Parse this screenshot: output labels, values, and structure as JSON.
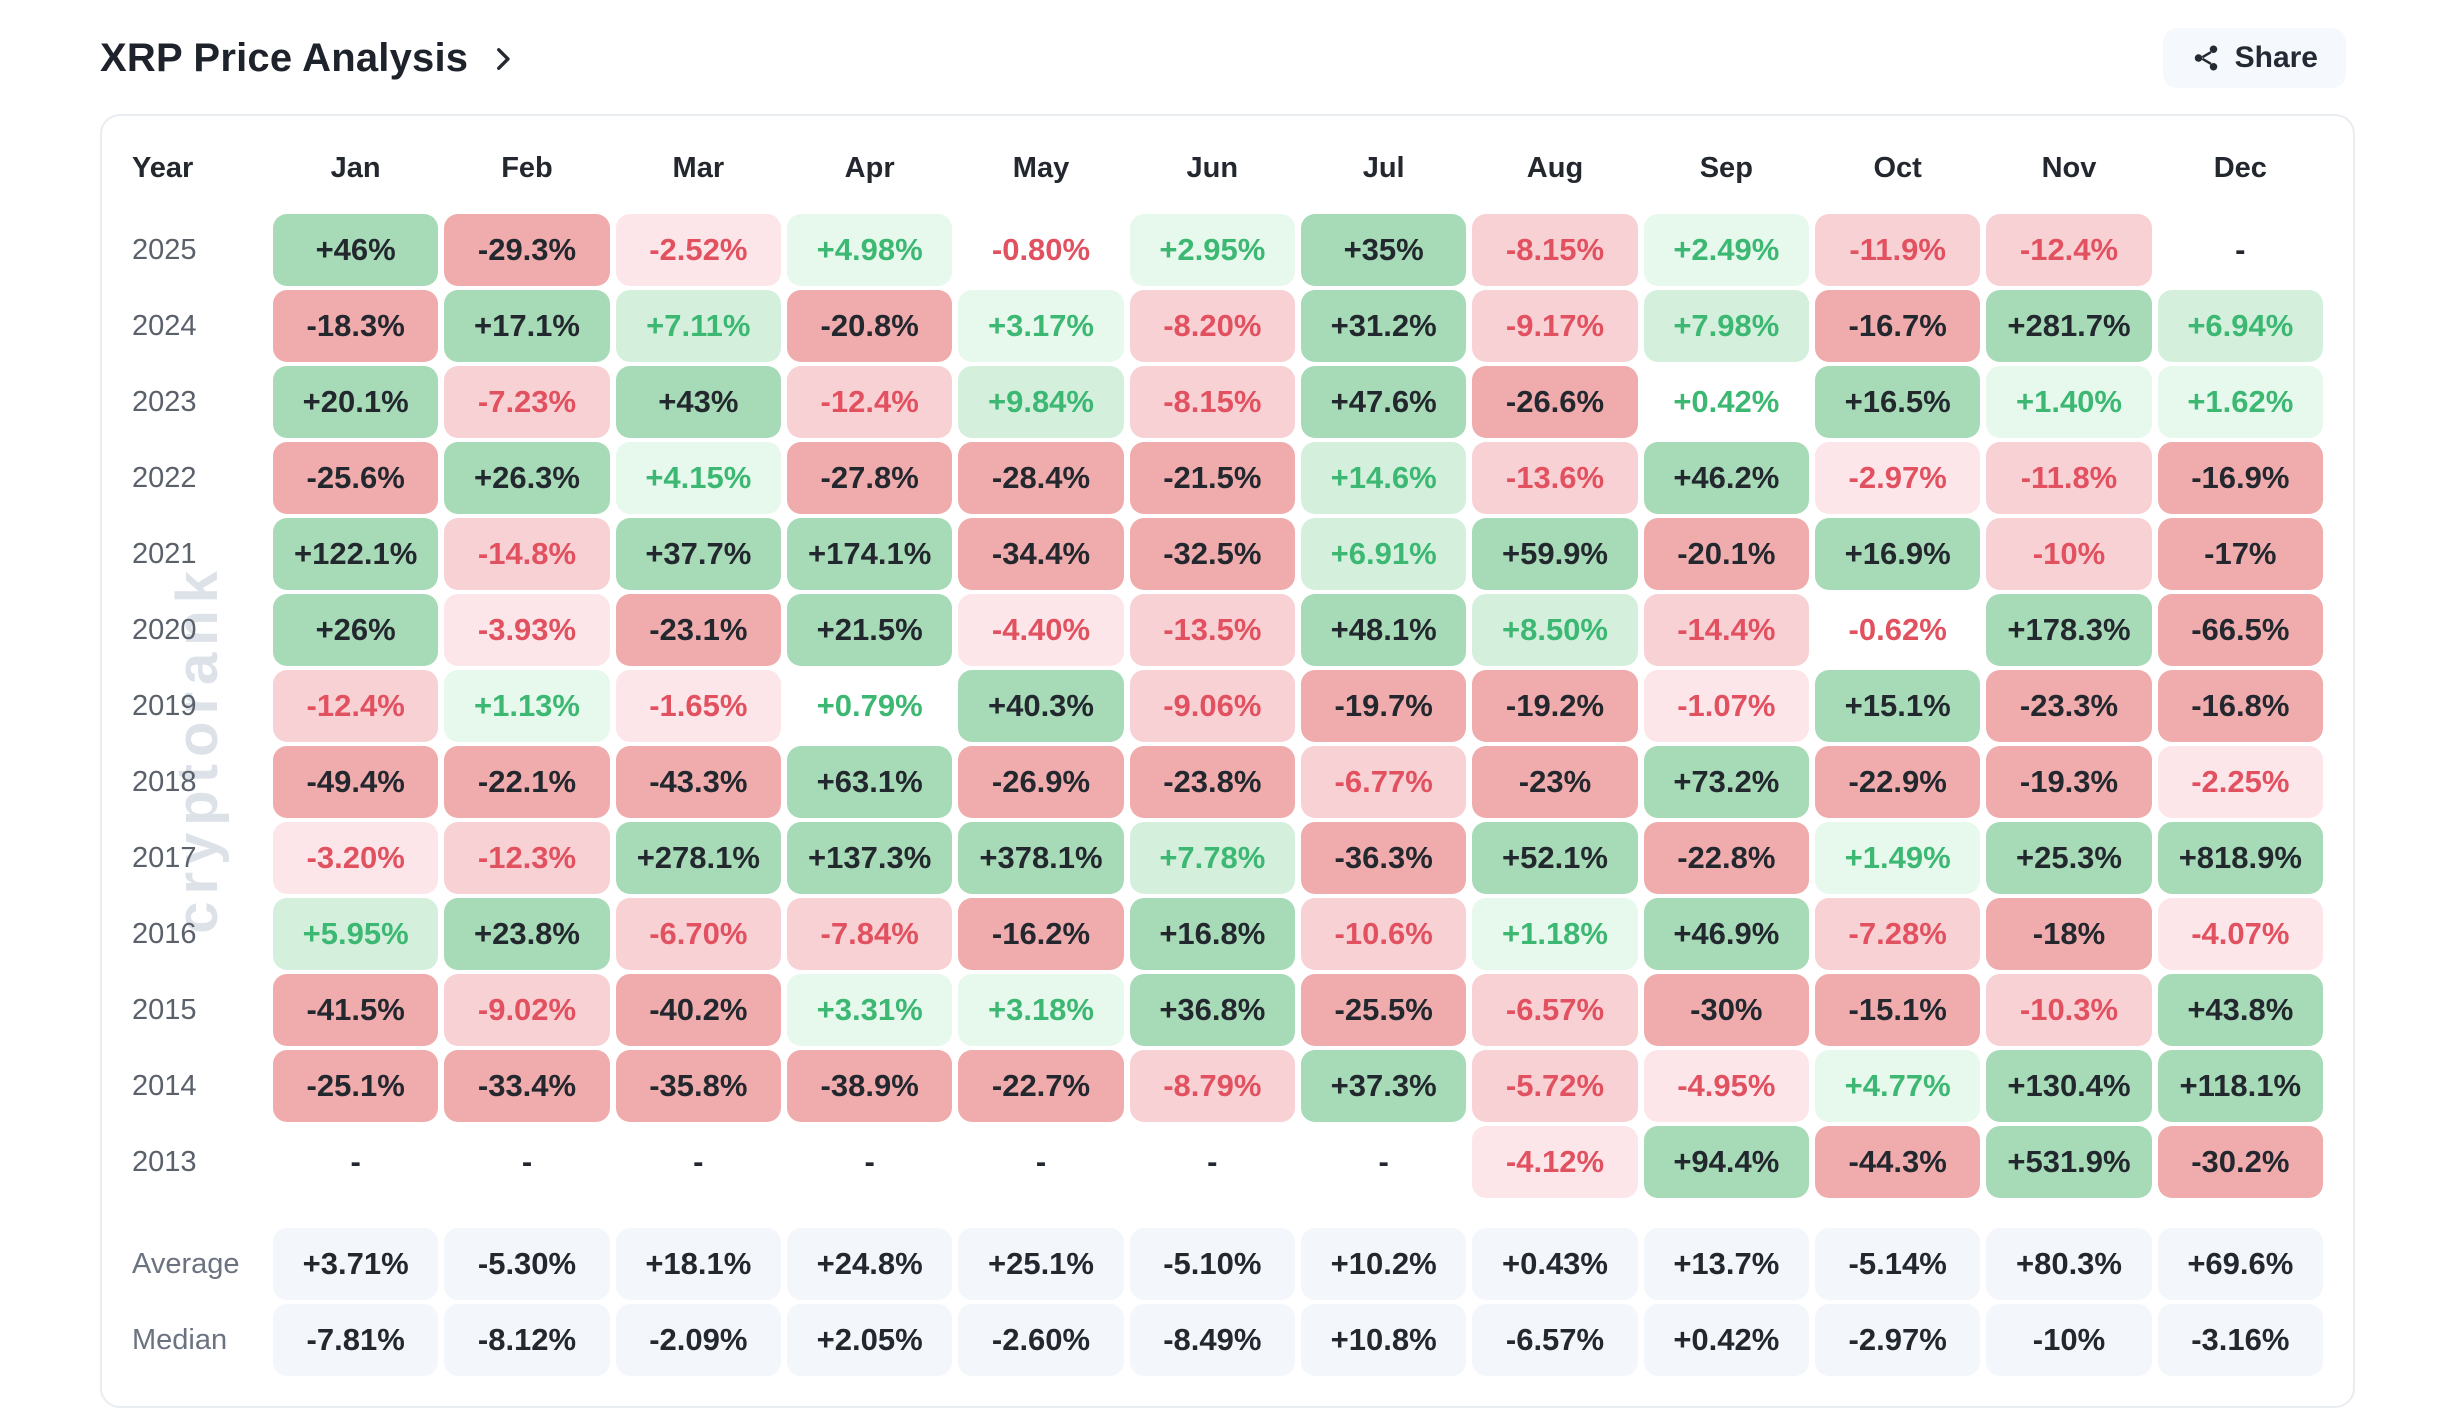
{
  "page": {
    "title": "XRP Price Analysis",
    "share_label": "Share"
  },
  "watermark": "cryptorank",
  "colors": {
    "strong_pos": "#a7dab6",
    "mid_pos": "#d4f0dd",
    "low_pos": "#e7f8ed",
    "strong_neg": "#f0abad",
    "mid_neg": "#f8d1d5",
    "low_neg": "#fce6e9",
    "text_pos": "#3cb873",
    "text_neg": "#e25160",
    "text_dark": "#23282f",
    "summary_bg": "#f3f6fb",
    "card_border": "#e9ecf0",
    "button_bg": "#f5f8fd",
    "year_label": "#5a616b",
    "watermark": "#dde2e9"
  },
  "table": {
    "columns": [
      "Year",
      "Jan",
      "Feb",
      "Mar",
      "Apr",
      "May",
      "Jun",
      "Jul",
      "Aug",
      "Sep",
      "Oct",
      "Nov",
      "Dec"
    ],
    "rows": [
      {
        "year": "2025",
        "cells": [
          "+46%",
          "-29.3%",
          "-2.52%",
          "+4.98%",
          "-0.80%",
          "+2.95%",
          "+35%",
          "-8.15%",
          "+2.49%",
          "-11.9%",
          "-12.4%",
          "-"
        ]
      },
      {
        "year": "2024",
        "cells": [
          "-18.3%",
          "+17.1%",
          "+7.11%",
          "-20.8%",
          "+3.17%",
          "-8.20%",
          "+31.2%",
          "-9.17%",
          "+7.98%",
          "-16.7%",
          "+281.7%",
          "+6.94%"
        ]
      },
      {
        "year": "2023",
        "cells": [
          "+20.1%",
          "-7.23%",
          "+43%",
          "-12.4%",
          "+9.84%",
          "-8.15%",
          "+47.6%",
          "-26.6%",
          "+0.42%",
          "+16.5%",
          "+1.40%",
          "+1.62%"
        ]
      },
      {
        "year": "2022",
        "cells": [
          "-25.6%",
          "+26.3%",
          "+4.15%",
          "-27.8%",
          "-28.4%",
          "-21.5%",
          "+14.6%",
          "-13.6%",
          "+46.2%",
          "-2.97%",
          "-11.8%",
          "-16.9%"
        ]
      },
      {
        "year": "2021",
        "cells": [
          "+122.1%",
          "-14.8%",
          "+37.7%",
          "+174.1%",
          "-34.4%",
          "-32.5%",
          "+6.91%",
          "+59.9%",
          "-20.1%",
          "+16.9%",
          "-10%",
          "-17%"
        ]
      },
      {
        "year": "2020",
        "cells": [
          "+26%",
          "-3.93%",
          "-23.1%",
          "+21.5%",
          "-4.40%",
          "-13.5%",
          "+48.1%",
          "+8.50%",
          "-14.4%",
          "-0.62%",
          "+178.3%",
          "-66.5%"
        ]
      },
      {
        "year": "2019",
        "cells": [
          "-12.4%",
          "+1.13%",
          "-1.65%",
          "+0.79%",
          "+40.3%",
          "-9.06%",
          "-19.7%",
          "-19.2%",
          "-1.07%",
          "+15.1%",
          "-23.3%",
          "-16.8%"
        ]
      },
      {
        "year": "2018",
        "cells": [
          "-49.4%",
          "-22.1%",
          "-43.3%",
          "+63.1%",
          "-26.9%",
          "-23.8%",
          "-6.77%",
          "-23%",
          "+73.2%",
          "-22.9%",
          "-19.3%",
          "-2.25%"
        ]
      },
      {
        "year": "2017",
        "cells": [
          "-3.20%",
          "-12.3%",
          "+278.1%",
          "+137.3%",
          "+378.1%",
          "+7.78%",
          "-36.3%",
          "+52.1%",
          "-22.8%",
          "+1.49%",
          "+25.3%",
          "+818.9%"
        ]
      },
      {
        "year": "2016",
        "cells": [
          "+5.95%",
          "+23.8%",
          "-6.70%",
          "-7.84%",
          "-16.2%",
          "+16.8%",
          "-10.6%",
          "+1.18%",
          "+46.9%",
          "-7.28%",
          "-18%",
          "-4.07%"
        ]
      },
      {
        "year": "2015",
        "cells": [
          "-41.5%",
          "-9.02%",
          "-40.2%",
          "+3.31%",
          "+3.18%",
          "+36.8%",
          "-25.5%",
          "-6.57%",
          "-30%",
          "-15.1%",
          "-10.3%",
          "+43.8%"
        ]
      },
      {
        "year": "2014",
        "cells": [
          "-25.1%",
          "-33.4%",
          "-35.8%",
          "-38.9%",
          "-22.7%",
          "-8.79%",
          "+37.3%",
          "-5.72%",
          "-4.95%",
          "+4.77%",
          "+130.4%",
          "+118.1%"
        ]
      },
      {
        "year": "2013",
        "cells": [
          "-",
          "-",
          "-",
          "-",
          "-",
          "-",
          "-",
          "-4.12%",
          "+94.4%",
          "-44.3%",
          "+531.9%",
          "-30.2%"
        ]
      }
    ],
    "summary": [
      {
        "label": "Average",
        "cells": [
          "+3.71%",
          "-5.30%",
          "+18.1%",
          "+24.8%",
          "+25.1%",
          "-5.10%",
          "+10.2%",
          "+0.43%",
          "+13.7%",
          "-5.14%",
          "+80.3%",
          "+69.6%"
        ]
      },
      {
        "label": "Median",
        "cells": [
          "-7.81%",
          "-8.12%",
          "-2.09%",
          "+2.05%",
          "-2.60%",
          "-8.49%",
          "+10.8%",
          "-6.57%",
          "+0.42%",
          "-2.97%",
          "-10%",
          "-3.16%"
        ]
      }
    ]
  },
  "chart_data": {
    "type": "heatmap",
    "title": "XRP Price Analysis",
    "unit": "percent monthly return",
    "columns": [
      "Jan",
      "Feb",
      "Mar",
      "Apr",
      "May",
      "Jun",
      "Jul",
      "Aug",
      "Sep",
      "Oct",
      "Nov",
      "Dec"
    ],
    "rows": [
      "2025",
      "2024",
      "2023",
      "2022",
      "2021",
      "2020",
      "2019",
      "2018",
      "2017",
      "2016",
      "2015",
      "2014",
      "2013"
    ],
    "values_pct": [
      [
        46,
        -29.3,
        -2.52,
        4.98,
        -0.8,
        2.95,
        35,
        -8.15,
        2.49,
        -11.9,
        -12.4,
        null
      ],
      [
        -18.3,
        17.1,
        7.11,
        -20.8,
        3.17,
        -8.2,
        31.2,
        -9.17,
        7.98,
        -16.7,
        281.7,
        6.94
      ],
      [
        20.1,
        -7.23,
        43,
        -12.4,
        9.84,
        -8.15,
        47.6,
        -26.6,
        0.42,
        16.5,
        1.4,
        1.62
      ],
      [
        -25.6,
        26.3,
        4.15,
        -27.8,
        -28.4,
        -21.5,
        14.6,
        -13.6,
        46.2,
        -2.97,
        -11.8,
        -16.9
      ],
      [
        122.1,
        -14.8,
        37.7,
        174.1,
        -34.4,
        -32.5,
        6.91,
        59.9,
        -20.1,
        16.9,
        -10,
        -17
      ],
      [
        26,
        -3.93,
        -23.1,
        21.5,
        -4.4,
        -13.5,
        48.1,
        8.5,
        -14.4,
        -0.62,
        178.3,
        -66.5
      ],
      [
        -12.4,
        1.13,
        -1.65,
        0.79,
        40.3,
        -9.06,
        -19.7,
        -19.2,
        -1.07,
        15.1,
        -23.3,
        -16.8
      ],
      [
        -49.4,
        -22.1,
        -43.3,
        63.1,
        -26.9,
        -23.8,
        -6.77,
        -23,
        73.2,
        -22.9,
        -19.3,
        -2.25
      ],
      [
        -3.2,
        -12.3,
        278.1,
        137.3,
        378.1,
        7.78,
        -36.3,
        52.1,
        -22.8,
        1.49,
        25.3,
        818.9
      ],
      [
        5.95,
        23.8,
        -6.7,
        -7.84,
        -16.2,
        16.8,
        -10.6,
        1.18,
        46.9,
        -7.28,
        -18,
        -4.07
      ],
      [
        -41.5,
        -9.02,
        -40.2,
        3.31,
        3.18,
        36.8,
        -25.5,
        -6.57,
        -30,
        -15.1,
        -10.3,
        43.8
      ],
      [
        -25.1,
        -33.4,
        -35.8,
        -38.9,
        -22.7,
        -8.79,
        37.3,
        -5.72,
        -4.95,
        4.77,
        130.4,
        118.1
      ],
      [
        null,
        null,
        null,
        null,
        null,
        null,
        null,
        -4.12,
        94.4,
        -44.3,
        531.9,
        -30.2
      ]
    ],
    "average_pct": [
      3.71,
      -5.3,
      18.1,
      24.8,
      25.1,
      -5.1,
      10.2,
      0.43,
      13.7,
      -5.14,
      80.3,
      69.6
    ],
    "median_pct": [
      -7.81,
      -8.12,
      -2.09,
      2.05,
      -2.6,
      -8.49,
      10.8,
      -6.57,
      0.42,
      -2.97,
      -10,
      -3.16
    ],
    "legend_position": "none",
    "color_rule": "abs<1: no fill; 1-5: faint fill; 5-15: light fill, colored text; >=15: saturated fill, dark text; green positive, red negative"
  }
}
